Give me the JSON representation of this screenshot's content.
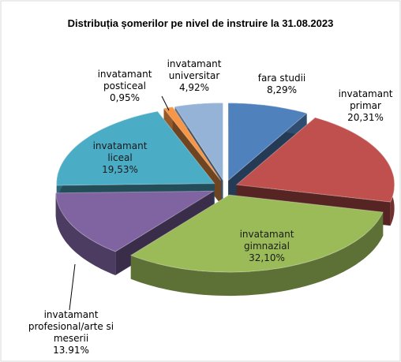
{
  "chart_data": {
    "type": "pie3d",
    "title": "Distribuția șomerilor pe nivel de  instruire la 31.08.2023",
    "categories": [
      "fara studii",
      "invatamant primar",
      "invatamant gimnazial",
      "invatamant profesional/arte si meserii",
      "invatamant liceal",
      "invatamant posticeal",
      "invatamant universitar"
    ],
    "values": [
      8.29,
      20.31,
      32.1,
      13.91,
      19.53,
      0.95,
      4.92
    ],
    "value_labels": [
      "8,29%",
      "20,31%",
      "32,10%",
      "13.91%",
      "19,53%",
      "0,95%",
      "4,92%"
    ],
    "colors": [
      "#4f81bd",
      "#c0504d",
      "#9bbb59",
      "#8064a2",
      "#4bacc6",
      "#f79646",
      "#95b3d7"
    ]
  }
}
